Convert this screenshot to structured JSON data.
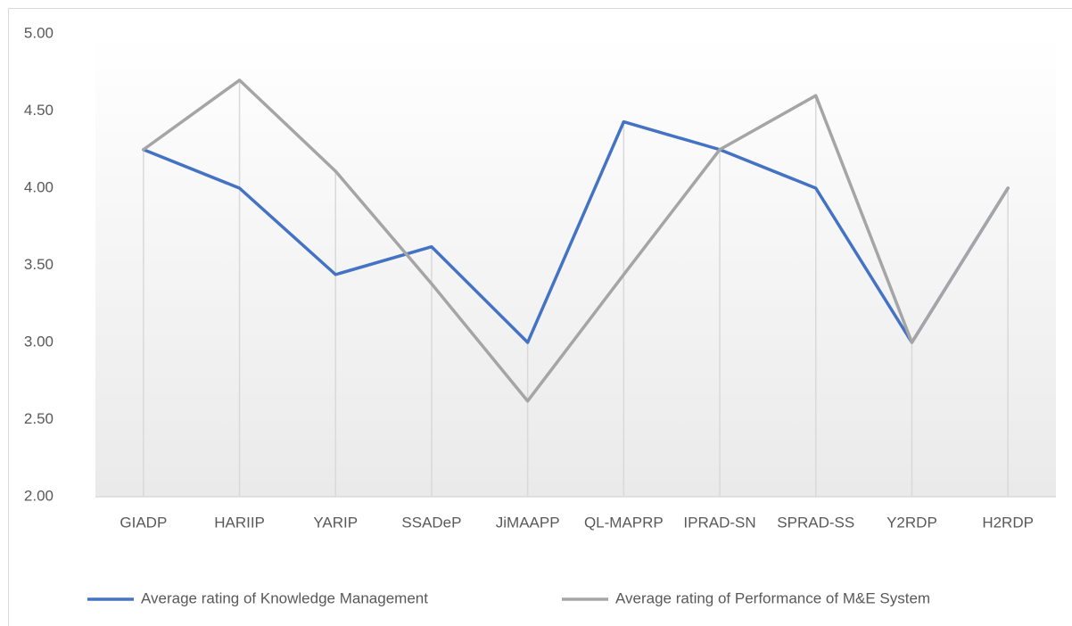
{
  "chart_data": {
    "type": "line",
    "categories": [
      "GIADP",
      "HARIIP",
      "YARIP",
      "SSADeP",
      "JiMAAPP",
      "QL-MAPRP",
      "IPRAD-SN",
      "SPRAD-SS",
      "Y2RDP",
      "H2RDP"
    ],
    "series": [
      {
        "name": "Average rating of Knowledge Management",
        "color": "#4472c4",
        "values": [
          4.25,
          4.0,
          3.44,
          3.62,
          3.0,
          4.43,
          4.25,
          4.0,
          3.0,
          4.0
        ]
      },
      {
        "name": "Average rating of Performance of M&E System",
        "color": "#a5a5a5",
        "values": [
          4.25,
          4.7,
          4.11,
          3.38,
          2.62,
          3.44,
          4.25,
          4.6,
          3.0,
          4.0
        ]
      }
    ],
    "ylim": [
      2,
      5
    ],
    "yticks": [
      {
        "value": 2,
        "label": "2.00"
      },
      {
        "value": 2.5,
        "label": "2.50"
      },
      {
        "value": 3,
        "label": "3.00"
      },
      {
        "value": 3.5,
        "label": "3.50"
      },
      {
        "value": 4,
        "label": "4.00"
      },
      {
        "value": 4.5,
        "label": "4.50"
      },
      {
        "value": 5,
        "label": "5.00"
      }
    ],
    "drop_lines": true,
    "legend": "bottom"
  }
}
